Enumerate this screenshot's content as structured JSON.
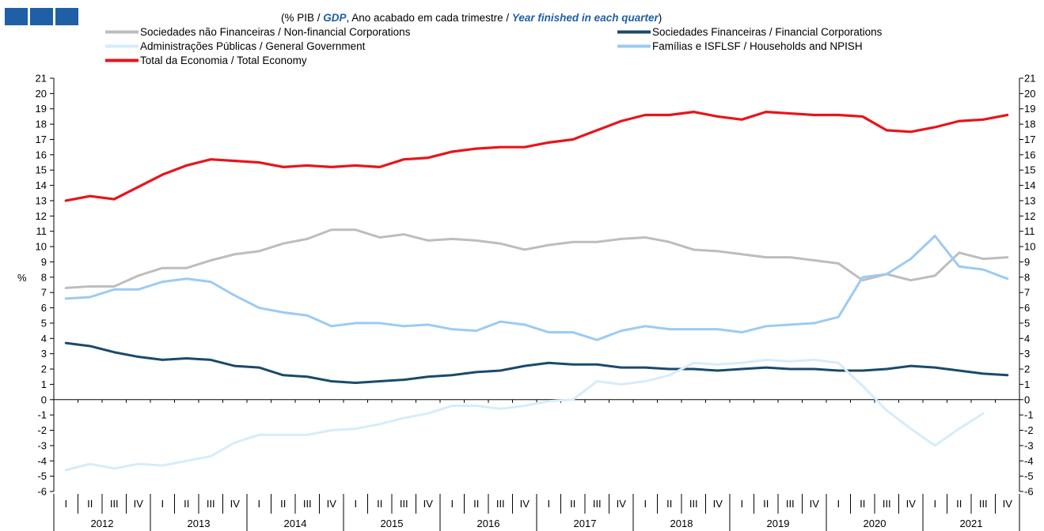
{
  "header": {
    "subtitle_parts": [
      "(% PIB / ",
      "GDP",
      ", Ano acabado em cada trimestre / ",
      "Year finished in each quarter",
      ")"
    ]
  },
  "colors": {
    "logo_blue": "#1f5fa6",
    "nonfinancial": "#bdbdbd",
    "financial": "#1a4a6b",
    "government": "#d6ecfa",
    "households": "#9ccbf2",
    "total": "#e8141b"
  },
  "chart_data": {
    "type": "line",
    "ylabel": "%",
    "ylim": [
      -6,
      21
    ],
    "y_ticks": [
      21,
      20,
      19,
      18,
      17,
      16,
      15,
      14,
      13,
      12,
      11,
      10,
      9,
      8,
      7,
      6,
      5,
      4,
      3,
      2,
      1,
      0,
      -1,
      -2,
      -3,
      -4,
      -5,
      -6
    ],
    "quarter_labels": [
      "I",
      "II",
      "III",
      "IV"
    ],
    "years": [
      "2012",
      "2013",
      "2014",
      "2015",
      "2016",
      "2017",
      "2018",
      "2019",
      "2020",
      "2021"
    ],
    "grid": false,
    "legend_position": "top",
    "series": [
      {
        "name": "Sociedades não Financeiras / Non-financial Corporations",
        "color": "#bdbdbd",
        "values": [
          7.3,
          7.4,
          7.4,
          8.1,
          8.6,
          8.6,
          9.1,
          9.5,
          9.7,
          10.2,
          10.5,
          11.1,
          11.1,
          10.6,
          10.8,
          10.4,
          10.5,
          10.4,
          10.2,
          9.8,
          10.1,
          10.3,
          10.3,
          10.5,
          10.6,
          10.3,
          9.8,
          9.7,
          9.5,
          9.3,
          9.3,
          9.1,
          8.9,
          7.8,
          8.2,
          7.8,
          8.1,
          9.6,
          9.2,
          9.3
        ]
      },
      {
        "name": "Sociedades Financeiras / Financial Corporations",
        "color": "#1a4a6b",
        "values": [
          3.7,
          3.5,
          3.1,
          2.8,
          2.6,
          2.7,
          2.6,
          2.2,
          2.1,
          1.6,
          1.5,
          1.2,
          1.1,
          1.2,
          1.3,
          1.5,
          1.6,
          1.8,
          1.9,
          2.2,
          2.4,
          2.3,
          2.3,
          2.1,
          2.1,
          2.0,
          2.0,
          1.9,
          2.0,
          2.1,
          2.0,
          2.0,
          1.9,
          1.9,
          2.0,
          2.2,
          2.1,
          1.9,
          1.7,
          1.6
        ]
      },
      {
        "name": "Administrações Públicas / General Government",
        "color": "#d6ecfa",
        "values": [
          -4.6,
          -4.2,
          -4.5,
          -4.2,
          -4.3,
          -4.0,
          -3.7,
          -2.8,
          -2.3,
          -2.3,
          -2.3,
          -2.0,
          -1.9,
          -1.6,
          -1.2,
          -0.9,
          -0.4,
          -0.4,
          -0.6,
          -0.4,
          -0.1,
          0.0,
          1.2,
          1.0,
          1.2,
          1.6,
          2.4,
          2.3,
          2.4,
          2.6,
          2.5,
          2.6,
          2.4,
          0.9,
          -0.7,
          -1.9,
          -3.0,
          -1.9,
          -0.9,
          null
        ]
      },
      {
        "name": "Famílias e ISFLSF / Households and NPISH",
        "color": "#9ccbf2",
        "values": [
          6.6,
          6.7,
          7.2,
          7.2,
          7.7,
          7.9,
          7.7,
          6.8,
          6.0,
          5.7,
          5.5,
          4.8,
          5.0,
          5.0,
          4.8,
          4.9,
          4.6,
          4.5,
          5.1,
          4.9,
          4.4,
          4.4,
          3.9,
          4.5,
          4.8,
          4.6,
          4.6,
          4.6,
          4.4,
          4.8,
          4.9,
          5.0,
          5.4,
          8.0,
          8.2,
          9.2,
          10.7,
          8.7,
          8.5,
          7.9
        ]
      },
      {
        "name": "Total da Economia / Total Economy",
        "color": "#e8141b",
        "values": [
          13.0,
          13.3,
          13.1,
          13.9,
          14.7,
          15.3,
          15.7,
          15.6,
          15.5,
          15.2,
          15.3,
          15.2,
          15.3,
          15.2,
          15.7,
          15.8,
          16.2,
          16.4,
          16.5,
          16.5,
          16.8,
          17.0,
          17.6,
          18.2,
          18.6,
          18.6,
          18.8,
          18.5,
          18.3,
          18.8,
          18.7,
          18.6,
          18.6,
          18.5,
          17.6,
          17.5,
          17.8,
          18.2,
          18.3,
          18.6
        ]
      }
    ]
  }
}
